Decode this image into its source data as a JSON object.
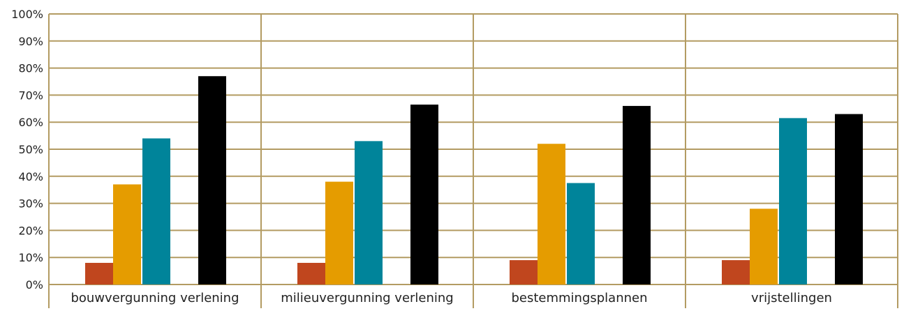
{
  "chart_data": {
    "type": "bar",
    "title": "",
    "xlabel": "",
    "ylabel": "",
    "ylim": [
      0,
      100
    ],
    "yticks": [
      "0%",
      "10%",
      "20%",
      "30%",
      "40%",
      "50%",
      "60%",
      "70%",
      "80%",
      "90%",
      "100%"
    ],
    "grid": true,
    "legend": "none",
    "categories": [
      "bouwvergunning verlening",
      "milieuvergunning verlening",
      "bestemmingsplannen",
      "vrijstellingen"
    ],
    "series": [
      {
        "color": "#c0461e",
        "values": [
          8,
          8,
          9,
          9
        ]
      },
      {
        "color": "#e59c00",
        "values": [
          37,
          38,
          52,
          28
        ]
      },
      {
        "color": "#00849a",
        "values": [
          54,
          53,
          37.5,
          61.5
        ]
      },
      {
        "color": "#000000",
        "values": [
          77,
          66.5,
          66,
          63
        ]
      }
    ],
    "gridColor": "#b39b62"
  }
}
